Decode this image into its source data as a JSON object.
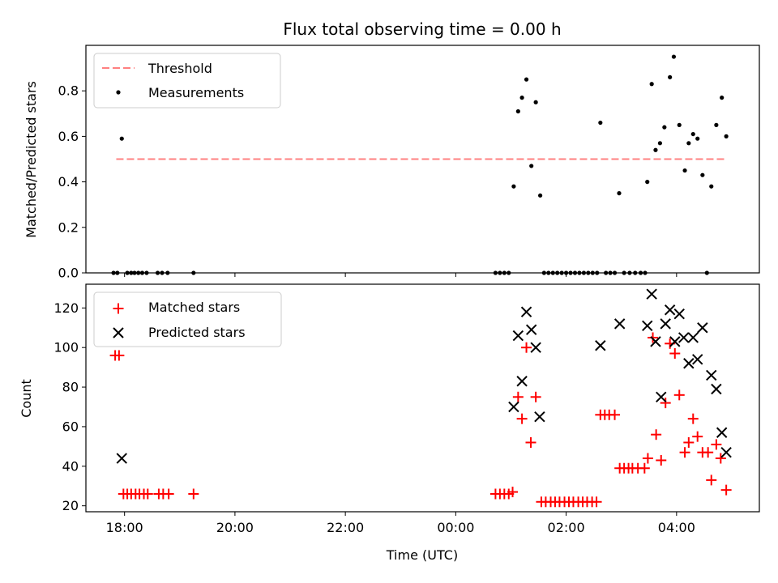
{
  "chart_data": [
    {
      "type": "scatter",
      "title": "Flux total observing time = 0.00 h",
      "ylabel": "Matched/Predicted stars",
      "xlabel": "",
      "xlim": [
        17.3,
        29.5
      ],
      "ylim": [
        0,
        1.0
      ],
      "yticks": [
        0.0,
        0.2,
        0.4,
        0.6,
        0.8
      ],
      "ytick_labels": [
        "0.0",
        "0.2",
        "0.4",
        "0.6",
        "0.8"
      ],
      "grid": false,
      "legend": {
        "placement": "top-left",
        "entries": [
          "Threshold",
          "Measurements"
        ]
      },
      "threshold": {
        "name": "Threshold",
        "value": 0.5,
        "x_range": [
          17.85,
          28.9
        ],
        "color": "#ff8080"
      },
      "measurements": {
        "name": "Measurements",
        "color": "#000000",
        "points": [
          [
            17.8,
            0.0
          ],
          [
            17.87,
            0.0
          ],
          [
            17.95,
            0.59
          ],
          [
            18.05,
            0.0
          ],
          [
            18.12,
            0.0
          ],
          [
            18.18,
            0.0
          ],
          [
            18.25,
            0.0
          ],
          [
            18.32,
            0.0
          ],
          [
            18.4,
            0.0
          ],
          [
            18.6,
            0.0
          ],
          [
            18.68,
            0.0
          ],
          [
            18.78,
            0.0
          ],
          [
            19.25,
            0.0
          ],
          [
            24.72,
            0.0
          ],
          [
            24.8,
            0.0
          ],
          [
            24.88,
            0.0
          ],
          [
            24.96,
            0.0
          ],
          [
            25.05,
            0.38
          ],
          [
            25.13,
            0.71
          ],
          [
            25.2,
            0.77
          ],
          [
            25.28,
            0.85
          ],
          [
            25.37,
            0.47
          ],
          [
            25.45,
            0.75
          ],
          [
            25.53,
            0.34
          ],
          [
            25.6,
            0.0
          ],
          [
            25.68,
            0.0
          ],
          [
            25.76,
            0.0
          ],
          [
            25.84,
            0.0
          ],
          [
            25.92,
            0.0
          ],
          [
            26.0,
            0.0
          ],
          [
            26.08,
            0.0
          ],
          [
            26.16,
            0.0
          ],
          [
            26.24,
            0.0
          ],
          [
            26.32,
            0.0
          ],
          [
            26.4,
            0.0
          ],
          [
            26.48,
            0.0
          ],
          [
            26.56,
            0.0
          ],
          [
            26.62,
            0.66
          ],
          [
            26.72,
            0.0
          ],
          [
            26.8,
            0.0
          ],
          [
            26.88,
            0.0
          ],
          [
            26.96,
            0.35
          ],
          [
            27.05,
            0.0
          ],
          [
            27.15,
            0.0
          ],
          [
            27.25,
            0.0
          ],
          [
            27.35,
            0.0
          ],
          [
            27.43,
            0.0
          ],
          [
            27.47,
            0.4
          ],
          [
            27.55,
            0.83
          ],
          [
            27.62,
            0.54
          ],
          [
            27.7,
            0.57
          ],
          [
            27.78,
            0.64
          ],
          [
            27.88,
            0.86
          ],
          [
            27.95,
            0.95
          ],
          [
            28.05,
            0.65
          ],
          [
            28.15,
            0.45
          ],
          [
            28.22,
            0.57
          ],
          [
            28.3,
            0.61
          ],
          [
            28.38,
            0.59
          ],
          [
            28.47,
            0.43
          ],
          [
            28.55,
            0.0
          ],
          [
            28.63,
            0.38
          ],
          [
            28.72,
            0.65
          ],
          [
            28.82,
            0.77
          ],
          [
            28.9,
            0.6
          ]
        ]
      }
    },
    {
      "type": "scatter",
      "title": "",
      "xlabel": "Time (UTC)",
      "ylabel": "Count",
      "xlim": [
        17.3,
        29.5
      ],
      "ylim": [
        17,
        132
      ],
      "xticks": [
        18,
        20,
        22,
        24,
        26,
        28
      ],
      "xtick_labels": [
        "18:00",
        "20:00",
        "22:00",
        "00:00",
        "02:00",
        "04:00"
      ],
      "yticks": [
        20,
        40,
        60,
        80,
        100,
        120
      ],
      "ytick_labels": [
        "20",
        "40",
        "60",
        "80",
        "100",
        "120"
      ],
      "grid": false,
      "legend": {
        "placement": "top-left",
        "entries": [
          "Matched stars",
          "Predicted stars"
        ]
      },
      "series": [
        {
          "name": "Matched stars",
          "marker": "+",
          "color": "#ff0000",
          "points": [
            [
              17.83,
              96
            ],
            [
              17.9,
              96
            ],
            [
              17.98,
              26
            ],
            [
              18.05,
              26
            ],
            [
              18.12,
              26
            ],
            [
              18.2,
              26
            ],
            [
              18.27,
              26
            ],
            [
              18.35,
              26
            ],
            [
              18.42,
              26
            ],
            [
              18.62,
              26
            ],
            [
              18.7,
              26
            ],
            [
              18.8,
              26
            ],
            [
              19.25,
              26
            ],
            [
              24.72,
              26
            ],
            [
              24.8,
              26
            ],
            [
              24.88,
              26
            ],
            [
              24.96,
              26
            ],
            [
              25.03,
              27
            ],
            [
              25.13,
              75
            ],
            [
              25.2,
              64
            ],
            [
              25.28,
              100
            ],
            [
              25.36,
              52
            ],
            [
              25.45,
              75
            ],
            [
              25.55,
              22
            ],
            [
              25.63,
              22
            ],
            [
              25.72,
              22
            ],
            [
              25.8,
              22
            ],
            [
              25.88,
              22
            ],
            [
              25.97,
              22
            ],
            [
              26.05,
              22
            ],
            [
              26.13,
              22
            ],
            [
              26.22,
              22
            ],
            [
              26.3,
              22
            ],
            [
              26.38,
              22
            ],
            [
              26.47,
              22
            ],
            [
              26.55,
              22
            ],
            [
              26.62,
              66
            ],
            [
              26.7,
              66
            ],
            [
              26.78,
              66
            ],
            [
              26.88,
              66
            ],
            [
              26.97,
              39
            ],
            [
              27.05,
              39
            ],
            [
              27.13,
              39
            ],
            [
              27.2,
              39
            ],
            [
              27.3,
              39
            ],
            [
              27.42,
              39
            ],
            [
              27.48,
              44
            ],
            [
              27.57,
              105
            ],
            [
              27.63,
              56
            ],
            [
              27.72,
              43
            ],
            [
              27.8,
              72
            ],
            [
              27.88,
              102
            ],
            [
              27.97,
              97
            ],
            [
              28.05,
              76
            ],
            [
              28.15,
              47
            ],
            [
              28.22,
              52
            ],
            [
              28.3,
              64
            ],
            [
              28.38,
              55
            ],
            [
              28.47,
              47
            ],
            [
              28.57,
              47
            ],
            [
              28.63,
              33
            ],
            [
              28.72,
              51
            ],
            [
              28.8,
              44
            ],
            [
              28.9,
              28
            ]
          ]
        },
        {
          "name": "Predicted stars",
          "marker": "x",
          "color": "#000000",
          "points": [
            [
              17.95,
              44
            ],
            [
              25.05,
              70
            ],
            [
              25.13,
              106
            ],
            [
              25.2,
              83
            ],
            [
              25.28,
              118
            ],
            [
              25.37,
              109
            ],
            [
              25.45,
              100
            ],
            [
              25.52,
              65
            ],
            [
              26.62,
              101
            ],
            [
              26.97,
              112
            ],
            [
              27.47,
              111
            ],
            [
              27.55,
              127
            ],
            [
              27.62,
              103
            ],
            [
              27.72,
              75
            ],
            [
              27.8,
              112
            ],
            [
              27.88,
              119
            ],
            [
              27.97,
              103
            ],
            [
              28.05,
              117
            ],
            [
              28.13,
              105
            ],
            [
              28.22,
              92
            ],
            [
              28.3,
              105
            ],
            [
              28.38,
              94
            ],
            [
              28.47,
              110
            ],
            [
              28.63,
              86
            ],
            [
              28.72,
              79
            ],
            [
              28.82,
              57
            ],
            [
              28.9,
              47
            ]
          ]
        }
      ]
    }
  ]
}
